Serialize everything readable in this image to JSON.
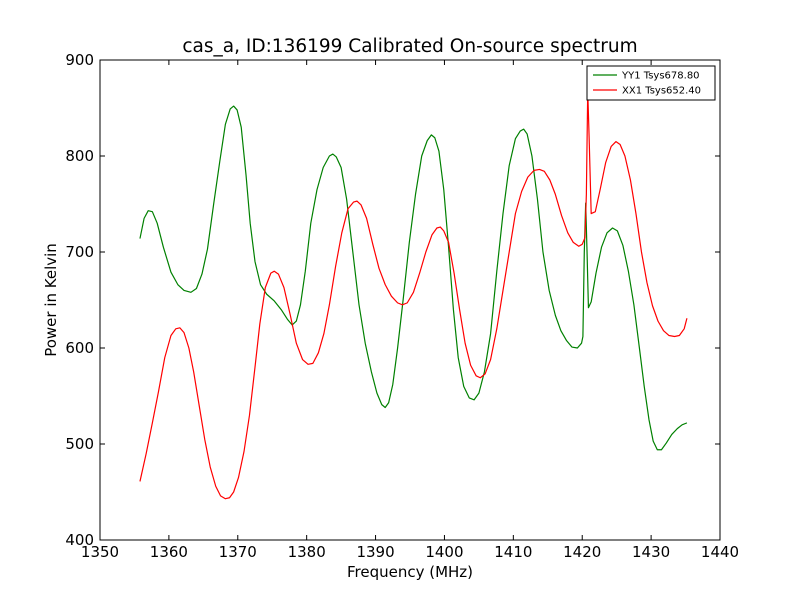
{
  "chart_data": {
    "type": "line",
    "title": "cas_a, ID:136199 Calibrated On-source spectrum",
    "xlabel": "Frequency (MHz)",
    "ylabel": "Power in Kelvin",
    "xlim": [
      1350,
      1440
    ],
    "ylim": [
      400,
      900
    ],
    "x_ticks": [
      1350,
      1360,
      1370,
      1380,
      1390,
      1400,
      1410,
      1420,
      1430,
      1440
    ],
    "y_ticks": [
      400,
      500,
      600,
      700,
      800,
      900
    ],
    "grid": false,
    "legend_position": "top-right",
    "series": [
      {
        "name": "YY1 Tsys678.80",
        "color": "#008000",
        "points": [
          [
            1355.8,
            714
          ],
          [
            1356.4,
            735
          ],
          [
            1357.0,
            743
          ],
          [
            1357.6,
            742
          ],
          [
            1358.3,
            730
          ],
          [
            1359.2,
            705
          ],
          [
            1360.3,
            679
          ],
          [
            1361.3,
            666
          ],
          [
            1362.2,
            660
          ],
          [
            1363.2,
            658
          ],
          [
            1364.0,
            662
          ],
          [
            1364.8,
            677
          ],
          [
            1365.6,
            703
          ],
          [
            1366.5,
            750
          ],
          [
            1367.4,
            795
          ],
          [
            1368.2,
            833
          ],
          [
            1368.9,
            849
          ],
          [
            1369.4,
            852
          ],
          [
            1369.9,
            848
          ],
          [
            1370.5,
            830
          ],
          [
            1371.2,
            780
          ],
          [
            1371.8,
            730
          ],
          [
            1372.5,
            690
          ],
          [
            1373.3,
            666
          ],
          [
            1374.2,
            656
          ],
          [
            1375.3,
            649
          ],
          [
            1376.3,
            640
          ],
          [
            1377.2,
            630
          ],
          [
            1377.9,
            624
          ],
          [
            1378.5,
            628
          ],
          [
            1379.1,
            645
          ],
          [
            1379.8,
            680
          ],
          [
            1380.6,
            730
          ],
          [
            1381.5,
            765
          ],
          [
            1382.4,
            788
          ],
          [
            1383.3,
            800
          ],
          [
            1383.8,
            802
          ],
          [
            1384.3,
            799
          ],
          [
            1385.0,
            788
          ],
          [
            1385.8,
            755
          ],
          [
            1386.7,
            700
          ],
          [
            1387.6,
            645
          ],
          [
            1388.5,
            605
          ],
          [
            1389.4,
            575
          ],
          [
            1390.2,
            553
          ],
          [
            1390.9,
            541
          ],
          [
            1391.4,
            538
          ],
          [
            1391.9,
            543
          ],
          [
            1392.5,
            562
          ],
          [
            1393.2,
            600
          ],
          [
            1394.0,
            650
          ],
          [
            1394.9,
            710
          ],
          [
            1395.8,
            760
          ],
          [
            1396.7,
            800
          ],
          [
            1397.5,
            816
          ],
          [
            1398.1,
            822
          ],
          [
            1398.6,
            819
          ],
          [
            1399.2,
            805
          ],
          [
            1399.9,
            765
          ],
          [
            1400.6,
            705
          ],
          [
            1401.3,
            640
          ],
          [
            1402.0,
            590
          ],
          [
            1402.8,
            560
          ],
          [
            1403.6,
            548
          ],
          [
            1404.3,
            546
          ],
          [
            1405.0,
            553
          ],
          [
            1405.8,
            575
          ],
          [
            1406.7,
            615
          ],
          [
            1407.6,
            680
          ],
          [
            1408.5,
            740
          ],
          [
            1409.4,
            790
          ],
          [
            1410.3,
            818
          ],
          [
            1411.0,
            826
          ],
          [
            1411.5,
            828
          ],
          [
            1412.0,
            823
          ],
          [
            1412.7,
            800
          ],
          [
            1413.5,
            755
          ],
          [
            1414.3,
            700
          ],
          [
            1415.2,
            660
          ],
          [
            1416.1,
            634
          ],
          [
            1416.9,
            618
          ],
          [
            1417.7,
            608
          ],
          [
            1418.5,
            601
          ],
          [
            1419.3,
            600
          ],
          [
            1419.9,
            605
          ],
          [
            1420.1,
            612
          ],
          [
            1420.3,
            700
          ],
          [
            1420.5,
            751
          ],
          [
            1420.7,
            700
          ],
          [
            1420.9,
            642
          ],
          [
            1421.3,
            648
          ],
          [
            1422.0,
            678
          ],
          [
            1422.8,
            705
          ],
          [
            1423.6,
            720
          ],
          [
            1424.4,
            725
          ],
          [
            1425.1,
            722
          ],
          [
            1425.9,
            707
          ],
          [
            1426.7,
            680
          ],
          [
            1427.5,
            645
          ],
          [
            1428.3,
            600
          ],
          [
            1429.0,
            560
          ],
          [
            1429.7,
            525
          ],
          [
            1430.3,
            503
          ],
          [
            1430.9,
            494
          ],
          [
            1431.5,
            494
          ],
          [
            1432.2,
            501
          ],
          [
            1433.0,
            510
          ],
          [
            1433.8,
            516
          ],
          [
            1434.5,
            520
          ],
          [
            1435.2,
            522
          ]
        ]
      },
      {
        "name": "XX1 Tsys652.40",
        "color": "#ff0000",
        "points": [
          [
            1355.8,
            461
          ],
          [
            1356.7,
            490
          ],
          [
            1357.6,
            522
          ],
          [
            1358.5,
            555
          ],
          [
            1359.4,
            590
          ],
          [
            1360.3,
            613
          ],
          [
            1361.0,
            620
          ],
          [
            1361.6,
            621
          ],
          [
            1362.2,
            616
          ],
          [
            1362.9,
            600
          ],
          [
            1363.6,
            575
          ],
          [
            1364.4,
            540
          ],
          [
            1365.2,
            505
          ],
          [
            1366.0,
            476
          ],
          [
            1366.8,
            456
          ],
          [
            1367.5,
            446
          ],
          [
            1368.2,
            443
          ],
          [
            1368.8,
            444
          ],
          [
            1369.4,
            450
          ],
          [
            1370.1,
            465
          ],
          [
            1370.9,
            492
          ],
          [
            1371.7,
            530
          ],
          [
            1372.5,
            580
          ],
          [
            1373.2,
            625
          ],
          [
            1374.0,
            663
          ],
          [
            1374.8,
            678
          ],
          [
            1375.3,
            680
          ],
          [
            1375.9,
            677
          ],
          [
            1376.7,
            663
          ],
          [
            1377.6,
            635
          ],
          [
            1378.5,
            605
          ],
          [
            1379.4,
            588
          ],
          [
            1380.2,
            583
          ],
          [
            1380.9,
            584
          ],
          [
            1381.7,
            595
          ],
          [
            1382.5,
            615
          ],
          [
            1383.3,
            645
          ],
          [
            1384.2,
            685
          ],
          [
            1385.1,
            720
          ],
          [
            1386.0,
            745
          ],
          [
            1386.8,
            752
          ],
          [
            1387.3,
            753
          ],
          [
            1387.9,
            749
          ],
          [
            1388.7,
            735
          ],
          [
            1389.6,
            708
          ],
          [
            1390.5,
            683
          ],
          [
            1391.4,
            666
          ],
          [
            1392.3,
            654
          ],
          [
            1393.2,
            647
          ],
          [
            1393.9,
            645
          ],
          [
            1394.6,
            647
          ],
          [
            1395.5,
            658
          ],
          [
            1396.4,
            678
          ],
          [
            1397.3,
            700
          ],
          [
            1398.2,
            718
          ],
          [
            1398.9,
            725
          ],
          [
            1399.4,
            726
          ],
          [
            1399.9,
            722
          ],
          [
            1400.6,
            710
          ],
          [
            1401.4,
            678
          ],
          [
            1402.2,
            640
          ],
          [
            1403.0,
            605
          ],
          [
            1403.8,
            582
          ],
          [
            1404.6,
            571
          ],
          [
            1405.2,
            569
          ],
          [
            1405.9,
            573
          ],
          [
            1406.7,
            588
          ],
          [
            1407.6,
            620
          ],
          [
            1408.5,
            660
          ],
          [
            1409.4,
            700
          ],
          [
            1410.3,
            740
          ],
          [
            1411.2,
            763
          ],
          [
            1412.1,
            778
          ],
          [
            1413.0,
            785
          ],
          [
            1413.8,
            786
          ],
          [
            1414.5,
            784
          ],
          [
            1415.3,
            775
          ],
          [
            1416.1,
            760
          ],
          [
            1417.0,
            738
          ],
          [
            1417.9,
            720
          ],
          [
            1418.7,
            710
          ],
          [
            1419.5,
            706
          ],
          [
            1420.0,
            708
          ],
          [
            1420.4,
            715
          ],
          [
            1420.6,
            760
          ],
          [
            1420.8,
            868
          ],
          [
            1421.0,
            820
          ],
          [
            1421.3,
            740
          ],
          [
            1421.9,
            742
          ],
          [
            1422.6,
            765
          ],
          [
            1423.4,
            793
          ],
          [
            1424.2,
            810
          ],
          [
            1424.9,
            815
          ],
          [
            1425.5,
            812
          ],
          [
            1426.2,
            800
          ],
          [
            1427.0,
            775
          ],
          [
            1427.8,
            740
          ],
          [
            1428.6,
            700
          ],
          [
            1429.4,
            668
          ],
          [
            1430.2,
            644
          ],
          [
            1431.0,
            628
          ],
          [
            1431.8,
            618
          ],
          [
            1432.6,
            613
          ],
          [
            1433.4,
            612
          ],
          [
            1434.1,
            613
          ],
          [
            1434.8,
            620
          ],
          [
            1435.2,
            631
          ]
        ]
      }
    ]
  }
}
